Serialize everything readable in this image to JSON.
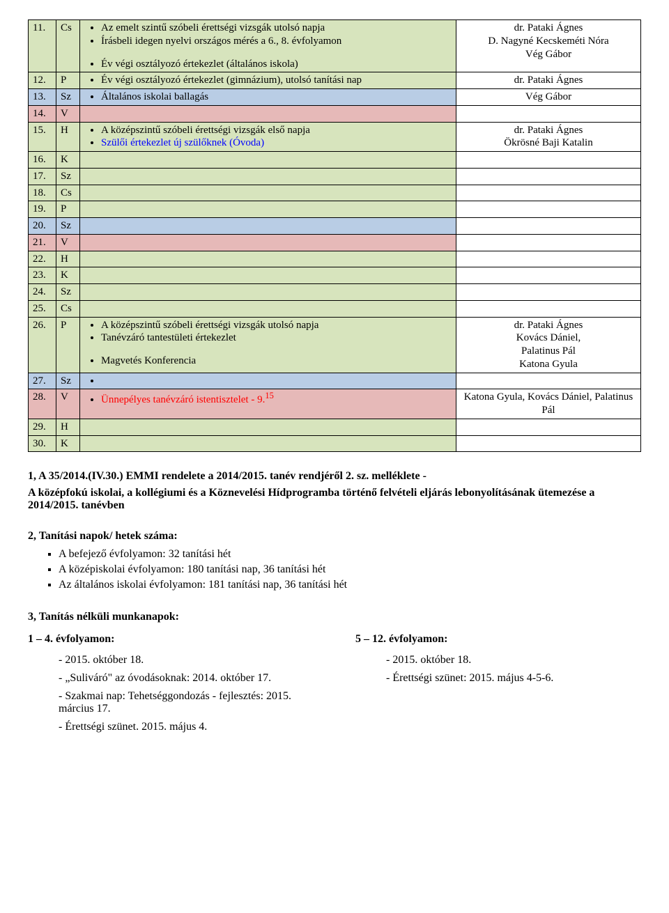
{
  "colors": {
    "green": "#d7e4bd",
    "blue_bg": "#b9cde5",
    "red_bg": "#e6b9b8",
    "white": "#ffffff",
    "blue_text": "#0000ff",
    "red_text": "#ff0000",
    "black": "#000000"
  },
  "rows": [
    {
      "num": "11.",
      "day": "Cs",
      "bg": "green",
      "events": [
        {
          "text": "Az emelt szintű szóbeli érettségi vizsgák utolsó napja"
        },
        {
          "text": "Írásbeli idegen nyelvi országos mérés a 6., 8. évfolyamon"
        },
        {
          "text": "Év végi osztályozó értekezlet (általános iskola)",
          "spacerBefore": true
        }
      ],
      "people": [
        "dr. Pataki Ágnes",
        "D. Nagyné Kecskeméti Nóra",
        "Vég Gábor"
      ]
    },
    {
      "num": "12.",
      "day": "P",
      "bg": "green",
      "events": [
        {
          "text": "Év végi osztályozó értekezlet (gimnázium), utolsó tanítási nap"
        }
      ],
      "people": [
        "dr. Pataki Ágnes"
      ]
    },
    {
      "num": "13.",
      "day": "Sz",
      "bg": "blue_bg",
      "events": [
        {
          "text": "Általános iskolai ballagás"
        }
      ],
      "people": [
        "Vég Gábor"
      ]
    },
    {
      "num": "14.",
      "day": "V",
      "bg": "red_bg",
      "events": [],
      "people": []
    },
    {
      "num": "15.",
      "day": "H",
      "bg": "green",
      "events": [
        {
          "text": "A középszintű szóbeli érettségi vizsgák első napja"
        },
        {
          "text": "Szülői értekezlet új szülőknek (Óvoda)",
          "color": "blue_text"
        }
      ],
      "people": [
        "dr. Pataki Ágnes",
        "Ökrösné Baji Katalin"
      ]
    },
    {
      "num": "16.",
      "day": "K",
      "bg": "green",
      "events": [],
      "people": []
    },
    {
      "num": "17.",
      "day": "Sz",
      "bg": "green",
      "events": [],
      "people": []
    },
    {
      "num": "18.",
      "day": "Cs",
      "bg": "green",
      "events": [],
      "people": []
    },
    {
      "num": "19.",
      "day": "P",
      "bg": "green",
      "events": [],
      "people": []
    },
    {
      "num": "20.",
      "day": "Sz",
      "bg": "blue_bg",
      "events": [],
      "people": []
    },
    {
      "num": "21.",
      "day": "V",
      "bg": "red_bg",
      "events": [],
      "people": []
    },
    {
      "num": "22.",
      "day": "H",
      "bg": "green",
      "events": [],
      "people": []
    },
    {
      "num": "23.",
      "day": "K",
      "bg": "green",
      "events": [],
      "people": []
    },
    {
      "num": "24.",
      "day": "Sz",
      "bg": "green",
      "events": [],
      "people": []
    },
    {
      "num": "25.",
      "day": "Cs",
      "bg": "green",
      "events": [],
      "people": []
    },
    {
      "num": "26.",
      "day": "P",
      "bg": "green",
      "events": [
        {
          "text": "A középszintű szóbeli érettségi vizsgák utolsó napja"
        },
        {
          "text": "Tanévzáró tantestületi értekezlet"
        },
        {
          "text": "Magvetés Konferencia",
          "spacerBefore": true
        }
      ],
      "people": [
        "dr. Pataki Ágnes",
        "Kovács Dániel,",
        "Palatinus Pál",
        "Katona Gyula"
      ]
    },
    {
      "num": "27.",
      "day": "Sz",
      "bg": "blue_bg",
      "events": [
        {
          "text": ""
        }
      ],
      "people": []
    },
    {
      "num": "28.",
      "day": "V",
      "bg": "red_bg",
      "events": [
        {
          "text": "Ünnepélyes tanévzáró istentisztelet - 9.",
          "sup": "15",
          "color": "red_text"
        }
      ],
      "people": [
        "Katona Gyula, Kovács Dániel, Palatinus Pál"
      ]
    },
    {
      "num": "29.",
      "day": "H",
      "bg": "green",
      "events": [],
      "people": []
    },
    {
      "num": "30.",
      "day": "K",
      "bg": "green",
      "events": [],
      "people": []
    }
  ],
  "footer": {
    "title1": "1,  A 35/2014.(IV.30.) EMMI rendelete a 2014/2015. tanév rendjéről 2. sz. melléklete -",
    "para1a": "A középfokú iskolai, a kollégiumi és a Köznevelési Hídprogramba történő felvételi eljárás lebonyolításának ütemezése a 2014/2015. tanévben",
    "title2": "2, Tanítási napok/ hetek száma:",
    "list2": [
      "A befejező évfolyamon: 32 tanítási hét",
      "A középiskolai évfolyamon: 180 tanítási nap, 36 tanítási hét",
      "Az általános iskolai évfolyamon: 181 tanítási nap, 36 tanítási hét"
    ],
    "title3": "3, Tanítás nélküli munkanapok:",
    "colA_title": "1 – 4. évfolyamon:",
    "colA": [
      "2015. október 18.",
      "„Suliváró\" az óvodásoknak: 2014. október 17.",
      "Szakmai nap: Tehetséggondozás - fejlesztés: 2015. március 17.",
      "Érettségi szünet. 2015. május 4."
    ],
    "colB_title": "5 – 12. évfolyamon:",
    "colB": [
      "2015. október 18.",
      "Érettségi szünet: 2015. május 4-5-6."
    ]
  }
}
